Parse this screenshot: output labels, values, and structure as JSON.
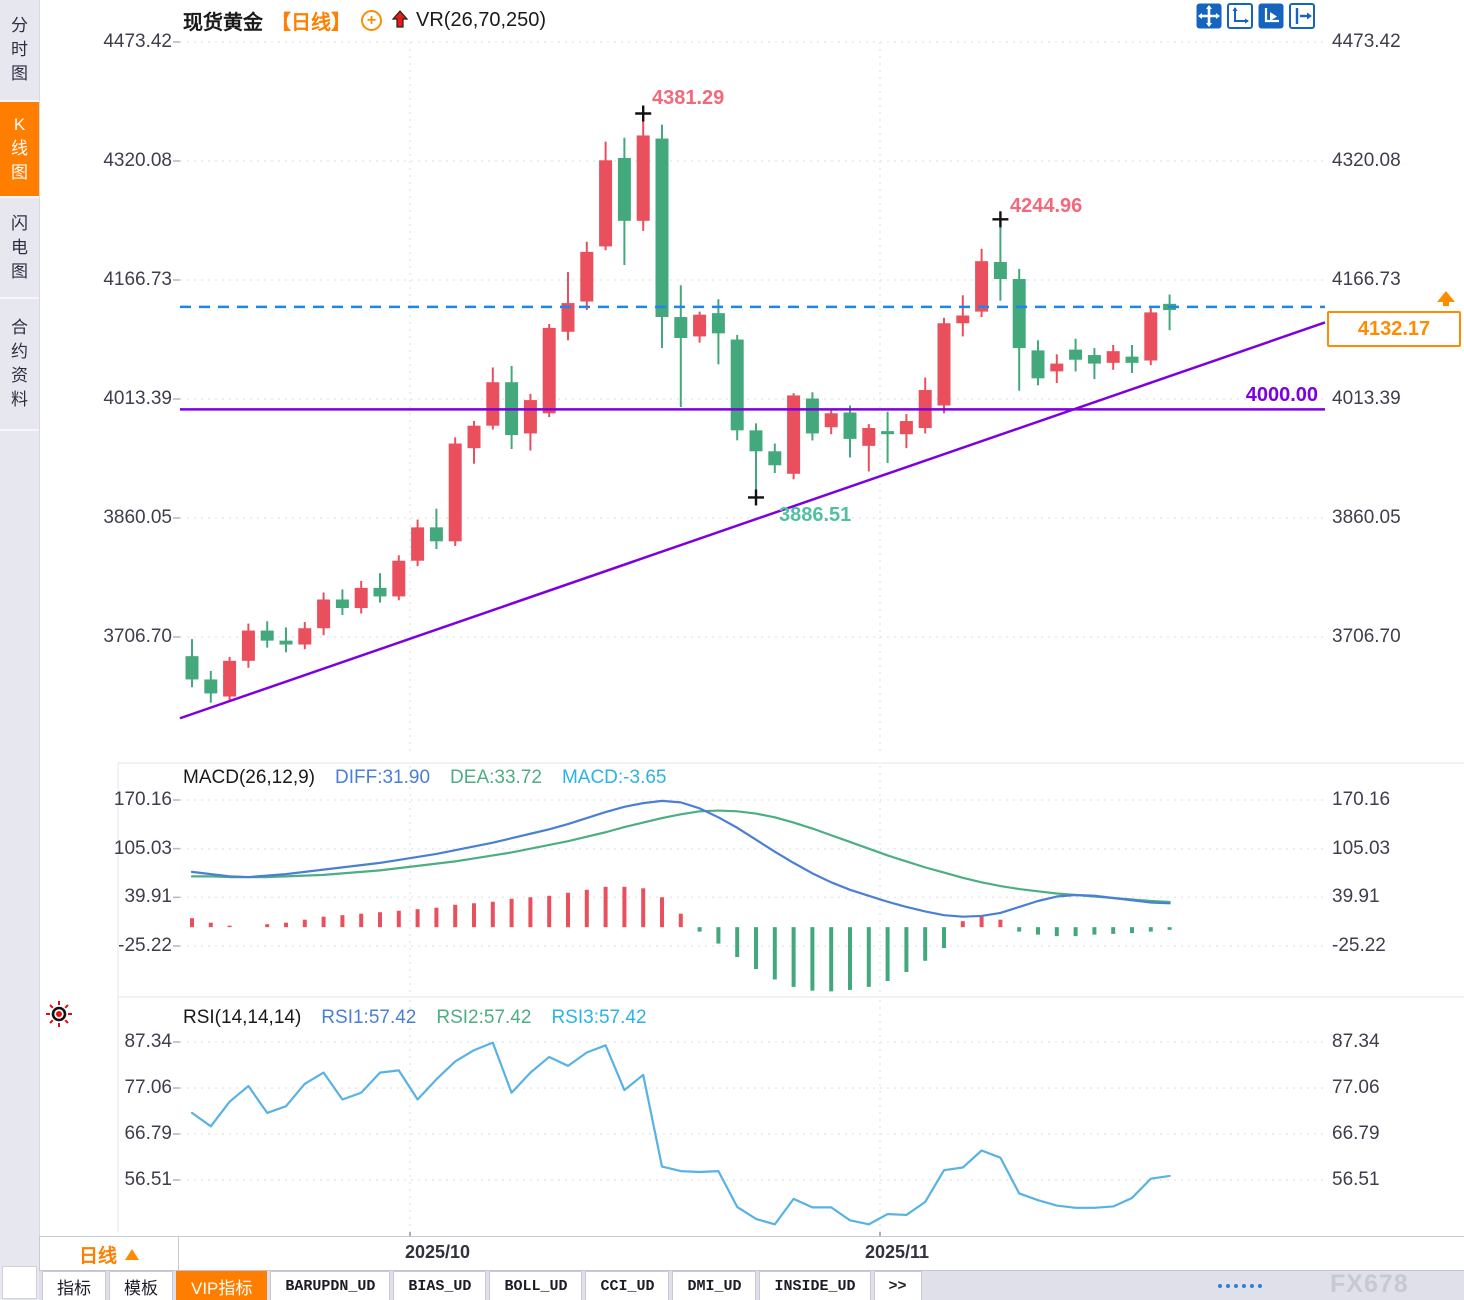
{
  "colors": {
    "up_candle": "#ea4f5e",
    "down_candle": "#44a87d",
    "accent_orange": "#ff7e00",
    "purple_line": "#7d00e0",
    "current_price_dashed": "#1d86e8",
    "diff_line": "#4a7fd4",
    "dea_line": "#4cae82",
    "rsi_line": "#58b2e4",
    "annotation_pink": "#f2697a",
    "annotation_teal": "#52c0a0",
    "toolbar_blue": "#1565c0"
  },
  "sidebar": {
    "items": [
      {
        "label": "分时图",
        "active": false
      },
      {
        "label": "K线图",
        "active": true
      },
      {
        "label": "闪电图",
        "active": false
      },
      {
        "label": "合约资料",
        "active": false
      }
    ]
  },
  "header": {
    "symbol": "现货黄金",
    "period": "【日线】",
    "overlay_indicator": "VR(26,70,250)"
  },
  "toolbar": {
    "icons": [
      "pan-crosshair",
      "axis-scale",
      "axis-scale-filled",
      "shift-right"
    ]
  },
  "price_axis": {
    "labels": [
      "4473.42",
      "4320.08",
      "4166.73",
      "4013.39",
      "3860.05",
      "3706.70"
    ]
  },
  "macd_panel": {
    "title": "MACD(26,12,9)",
    "diff": "DIFF:31.90",
    "dea": "DEA:33.72",
    "macd": "MACD:-3.65",
    "axis": [
      "170.16",
      "105.03",
      "39.91",
      "-25.22"
    ]
  },
  "rsi_panel": {
    "title": "RSI(14,14,14)",
    "rsi1": "RSI1:57.42",
    "rsi2": "RSI2:57.42",
    "rsi3": "RSI3:57.42",
    "axis": [
      "87.34",
      "77.06",
      "66.79",
      "56.51"
    ]
  },
  "annotations": {
    "high1": "4381.29",
    "high2": "4244.96",
    "low1": "3886.51",
    "hline_label": "4000.00",
    "current_price": "4132.17"
  },
  "x_axis": {
    "labels": [
      "2025/10",
      "2025/11"
    ],
    "period_selector": "日线"
  },
  "bottom_tabs": [
    {
      "label": "指标",
      "active": false,
      "mono": false
    },
    {
      "label": "模板",
      "active": false,
      "mono": false
    },
    {
      "label": "VIP指标",
      "active": true,
      "mono": false
    },
    {
      "label": "BARUPDN_UD",
      "active": false,
      "mono": true
    },
    {
      "label": "BIAS_UD",
      "active": false,
      "mono": true
    },
    {
      "label": "BOLL_UD",
      "active": false,
      "mono": true
    },
    {
      "label": "CCI_UD",
      "active": false,
      "mono": true
    },
    {
      "label": "DMI_UD",
      "active": false,
      "mono": true
    },
    {
      "label": "INSIDE_UD",
      "active": false,
      "mono": true
    },
    {
      "label": ">>",
      "active": false,
      "mono": true
    }
  ],
  "watermark": "FX678",
  "chart_data": {
    "type": "candlestick",
    "title": "现货黄金 日线 (spot gold daily)",
    "convention": "red = up, green = down",
    "price_axis_ticks": [
      4473.42,
      4320.08,
      4166.73,
      4013.39,
      3860.05,
      3706.7
    ],
    "x_labels": [
      "2025/10",
      "2025/11"
    ],
    "candles": [
      [
        3682,
        3704,
        3642,
        3652
      ],
      [
        3652,
        3663,
        3622,
        3634
      ],
      [
        3630,
        3681,
        3624,
        3676
      ],
      [
        3676,
        3724,
        3667,
        3715
      ],
      [
        3715,
        3727,
        3693,
        3702
      ],
      [
        3702,
        3719,
        3687,
        3697
      ],
      [
        3697,
        3726,
        3691,
        3718
      ],
      [
        3718,
        3764,
        3709,
        3755
      ],
      [
        3755,
        3768,
        3735,
        3744
      ],
      [
        3744,
        3779,
        3737,
        3770
      ],
      [
        3770,
        3789,
        3751,
        3759
      ],
      [
        3759,
        3812,
        3754,
        3805
      ],
      [
        3805,
        3858,
        3798,
        3848
      ],
      [
        3848,
        3872,
        3820,
        3830
      ],
      [
        3830,
        3964,
        3824,
        3956
      ],
      [
        3950,
        3985,
        3930,
        3979
      ],
      [
        3979,
        4054,
        3974,
        4035
      ],
      [
        4035,
        4056,
        3949,
        3967
      ],
      [
        3969,
        4020,
        3947,
        4012
      ],
      [
        3995,
        4110,
        3990,
        4105
      ],
      [
        4100,
        4177,
        4089,
        4137
      ],
      [
        4139,
        4216,
        4128,
        4203
      ],
      [
        4210,
        4345,
        4205,
        4321
      ],
      [
        4324,
        4350,
        4186,
        4243
      ],
      [
        4243,
        4381.29,
        4230,
        4353
      ],
      [
        4349,
        4367,
        4079,
        4119
      ],
      [
        4119,
        4160,
        4003,
        4092
      ],
      [
        4094,
        4126,
        4086,
        4122
      ],
      [
        4124,
        4142,
        4058,
        4098
      ],
      [
        4090,
        4096,
        3960,
        3973
      ],
      [
        3973,
        3982,
        3886.51,
        3946
      ],
      [
        3946,
        3956,
        3918,
        3928
      ],
      [
        3917,
        4021,
        3910,
        4018
      ],
      [
        4014,
        4022,
        3960,
        3969
      ],
      [
        3977,
        4001,
        3968,
        3995
      ],
      [
        3996,
        4005,
        3938,
        3962
      ],
      [
        3953,
        3981,
        3920,
        3976
      ],
      [
        3972,
        3997,
        3931,
        3968
      ],
      [
        3968,
        3994,
        3950,
        3985
      ],
      [
        3976,
        4041,
        3969,
        4025
      ],
      [
        4005,
        4118,
        3995,
        4111
      ],
      [
        4111,
        4147,
        4094,
        4121
      ],
      [
        4126,
        4207,
        4119,
        4191
      ],
      [
        4190,
        4244.96,
        4140,
        4168
      ],
      [
        4168,
        4181,
        4024,
        4079
      ],
      [
        4076,
        4089,
        4031,
        4040
      ],
      [
        4049,
        4071,
        4034,
        4059
      ],
      [
        4077,
        4091,
        4049,
        4064
      ],
      [
        4070,
        4079,
        4039,
        4059
      ],
      [
        4060,
        4083,
        4051,
        4075
      ],
      [
        4068,
        4083,
        4047,
        4060
      ],
      [
        4063,
        4133,
        4057,
        4125
      ],
      [
        4136,
        4148,
        4102,
        4128
      ]
    ],
    "marked_points": [
      {
        "index": 24,
        "price": 4381.29,
        "label": "4381.29",
        "position": "high"
      },
      {
        "index": 43,
        "price": 4244.96,
        "label": "4244.96",
        "position": "high"
      },
      {
        "index": 30,
        "price": 3886.51,
        "label": "3886.51",
        "position": "low"
      }
    ],
    "horizontal_line": {
      "price": 4000.0,
      "label": "4000.00"
    },
    "current_price_line": {
      "price": 4132.17,
      "label": "4132.17"
    },
    "trendline": {
      "price_left": 3602,
      "price_right": 4112
    },
    "macd": {
      "params": "26,12,9",
      "latest": {
        "diff": 31.9,
        "dea": 33.72,
        "macd": -3.65
      },
      "axis_ticks": [
        170.16,
        105.03,
        39.91,
        -25.22
      ],
      "diff": [
        74,
        71,
        68,
        67,
        69,
        71,
        74,
        77,
        80,
        83,
        86,
        90,
        94,
        98,
        103,
        108,
        113,
        119,
        125,
        131,
        138,
        146,
        154,
        161,
        166,
        169,
        167,
        159,
        147,
        133,
        117,
        101,
        86,
        72,
        60,
        50,
        42,
        34,
        27,
        21,
        16,
        14,
        15,
        19,
        27,
        35,
        41,
        43,
        42,
        39,
        36,
        33,
        31.9
      ],
      "dea": [
        68,
        68,
        67,
        67,
        67,
        68,
        69,
        70,
        72,
        74,
        76,
        79,
        82,
        85,
        88,
        92,
        96,
        100,
        105,
        110,
        115,
        121,
        127,
        134,
        140,
        146,
        151,
        155,
        156,
        155,
        152,
        147,
        140,
        132,
        123,
        114,
        105,
        96,
        88,
        80,
        73,
        66,
        60,
        55,
        51,
        48,
        45,
        43,
        41,
        39,
        37,
        35,
        33.7
      ],
      "hist": [
        12,
        6,
        2,
        0,
        4,
        6,
        10,
        14,
        16,
        18,
        20,
        22,
        24,
        26,
        30,
        32,
        34,
        38,
        40,
        42,
        46,
        50,
        54,
        54,
        52,
        40,
        18,
        -6,
        -22,
        -40,
        -56,
        -70,
        -80,
        -85,
        -86,
        -84,
        -80,
        -72,
        -60,
        -45,
        -28,
        8,
        14,
        10,
        -6,
        -10,
        -12,
        -12,
        -10,
        -9,
        -8,
        -6,
        -3.65
      ]
    },
    "rsi": {
      "params": "14,14,14",
      "latest": {
        "rsi1": 57.42,
        "rsi2": 57.42,
        "rsi3": 57.42
      },
      "axis_ticks": [
        87.34,
        77.06,
        66.79,
        56.51
      ],
      "values": [
        71.5,
        68.5,
        74.0,
        77.5,
        71.5,
        73.0,
        78.0,
        80.5,
        74.5,
        76.0,
        80.5,
        81.0,
        74.5,
        79.0,
        83.0,
        85.5,
        87.2,
        76.0,
        80.5,
        84.0,
        82.0,
        85.0,
        86.6,
        76.6,
        80.0,
        59.5,
        58.5,
        58.3,
        58.5,
        50.5,
        47.8,
        46.6,
        52.3,
        50.4,
        50.4,
        47.5,
        46.6,
        48.9,
        48.7,
        51.6,
        58.7,
        59.3,
        63.1,
        61.5,
        53.5,
        52.0,
        50.8,
        50.3,
        50.3,
        50.6,
        52.5,
        56.8,
        57.42
      ]
    }
  }
}
